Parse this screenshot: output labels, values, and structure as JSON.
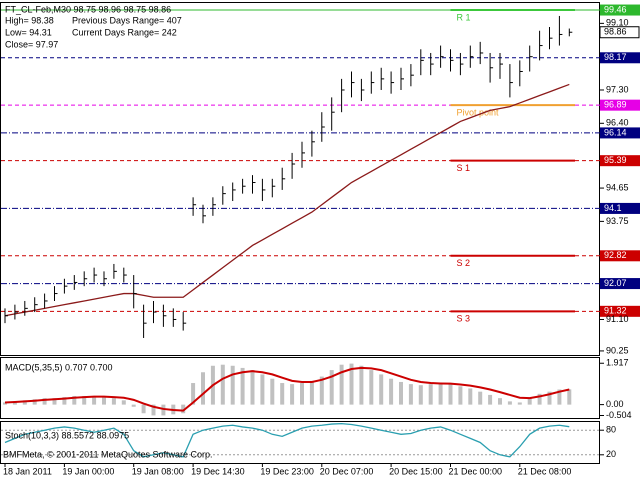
{
  "chart_data": [
    {
      "type": "candlestick",
      "title": "FT_CL-Feb,M30  98.75 98.96 98.75 98.86",
      "info": [
        "High= 98.38",
        "Previous Days Range= 407",
        "Low= 94.31",
        "Current Days Range= 242",
        "Close= 97.97"
      ],
      "categories": [
        "18 Jan 2011",
        null,
        null,
        null,
        null,
        null,
        "19 Jan 00:00",
        null,
        null,
        null,
        null,
        null,
        null,
        "19 Jan 08:00",
        null,
        null,
        null,
        null,
        null,
        "19 Dec 14:30",
        null,
        null,
        null,
        null,
        null,
        null,
        "19 Dec 23:00",
        null,
        null,
        null,
        null,
        null,
        "20 Dec 07:00",
        null,
        null,
        null,
        null,
        null,
        null,
        "20 Dec 15:00",
        null,
        null,
        null,
        null,
        null,
        "21 Dec 00:00",
        null,
        null,
        null,
        null,
        null,
        null,
        "21 Dec 08:00",
        null,
        null,
        null,
        null,
        null
      ],
      "high": [
        91.4,
        91.5,
        91.6,
        91.7,
        91.8,
        92.0,
        92.2,
        92.3,
        92.4,
        92.5,
        92.4,
        92.6,
        92.5,
        92.3,
        91.5,
        91.6,
        91.5,
        91.4,
        91.3,
        94.4,
        94.2,
        94.4,
        94.7,
        94.8,
        94.9,
        95.0,
        94.9,
        94.9,
        95.2,
        95.6,
        95.9,
        96.2,
        96.7,
        97.1,
        97.6,
        97.8,
        97.6,
        97.8,
        97.9,
        97.8,
        97.9,
        98.0,
        98.4,
        98.3,
        98.5,
        98.4,
        98.3,
        98.5,
        98.6,
        98.3,
        98.3,
        98.0,
        98.1,
        98.5,
        98.9,
        99.0,
        99.3,
        98.96
      ],
      "low": [
        91.0,
        91.1,
        91.2,
        91.3,
        91.4,
        91.6,
        91.8,
        91.9,
        92.0,
        92.1,
        92.0,
        92.2,
        92.1,
        91.4,
        90.6,
        91.0,
        90.9,
        90.9,
        90.8,
        93.9,
        93.7,
        93.9,
        94.2,
        94.3,
        94.5,
        94.5,
        94.3,
        94.4,
        94.6,
        94.9,
        95.2,
        95.5,
        95.9,
        96.2,
        96.7,
        97.1,
        97.0,
        97.2,
        97.3,
        97.2,
        97.3,
        97.4,
        97.7,
        97.7,
        97.9,
        97.8,
        97.7,
        97.9,
        98.0,
        97.5,
        97.6,
        97.1,
        97.4,
        97.8,
        98.1,
        98.4,
        98.5,
        98.75
      ],
      "close": [
        91.2,
        91.3,
        91.4,
        91.5,
        91.6,
        91.8,
        92.0,
        92.1,
        92.2,
        92.3,
        92.2,
        92.4,
        92.3,
        91.8,
        91.0,
        91.3,
        91.2,
        91.1,
        91.0,
        94.2,
        93.9,
        94.2,
        94.5,
        94.6,
        94.7,
        94.8,
        94.6,
        94.7,
        94.9,
        95.3,
        95.6,
        95.9,
        96.3,
        96.7,
        97.3,
        97.5,
        97.3,
        97.5,
        97.6,
        97.5,
        97.6,
        97.7,
        98.1,
        98.0,
        98.2,
        98.1,
        98.0,
        98.2,
        98.3,
        97.9,
        98.0,
        97.5,
        97.8,
        98.2,
        98.5,
        98.7,
        98.8,
        98.86
      ],
      "color": "#000000",
      "series": [
        {
          "color": "#8b1a1a",
          "values": [
            91.2,
            91.25,
            91.3,
            91.35,
            91.4,
            91.45,
            91.5,
            91.55,
            91.6,
            91.65,
            91.7,
            91.75,
            91.8,
            91.8,
            91.75,
            91.7,
            91.7,
            91.7,
            91.7,
            91.9,
            92.1,
            92.3,
            92.5,
            92.7,
            92.9,
            93.1,
            93.25,
            93.4,
            93.55,
            93.7,
            93.85,
            94.0,
            94.2,
            94.4,
            94.6,
            94.8,
            94.95,
            95.1,
            95.25,
            95.4,
            95.55,
            95.7,
            95.85,
            96.0,
            96.15,
            96.3,
            96.45,
            96.55,
            96.65,
            96.75,
            96.8,
            96.85,
            96.95,
            97.05,
            97.15,
            97.25,
            97.35,
            97.45
          ]
        }
      ],
      "ylim": [
        90.14,
        99.65
      ],
      "yticks": [
        {
          "value": 99.1,
          "label": "99.10"
        },
        {
          "value": 97.3,
          "label": "97.30"
        },
        {
          "value": 96.4,
          "label": "96.40"
        },
        94.65,
        93.75,
        {
          "value": 91.1,
          "label": "91.10"
        },
        90.25
      ],
      "levels": [
        {
          "value": 99.46,
          "color": "#2db82d",
          "dash": "solid"
        },
        {
          "value": 98.17,
          "color": "#000080",
          "dash": "dash"
        },
        {
          "value": 96.89,
          "color": "#e600e6",
          "dash": "dash"
        },
        {
          "value": 96.14,
          "color": "#000080",
          "dash": "dashdot"
        },
        {
          "value": 95.39,
          "color": "#cc0000",
          "dash": "dash"
        },
        {
          "value": 94.1,
          "color": "#000080",
          "dash": "dashdot"
        },
        {
          "value": 92.82,
          "color": "#cc0000",
          "dash": "dash"
        },
        {
          "value": 92.07,
          "color": "#000080",
          "dash": "dashdot"
        },
        {
          "value": 91.32,
          "color": "#cc0000",
          "dash": "dash"
        }
      ],
      "pivots": [
        {
          "label": "R 1",
          "value": 99.46,
          "color": "#3cc83c"
        },
        {
          "label": "Pivot point",
          "value": 96.89,
          "color": "#f0a030"
        },
        {
          "label": "S 1",
          "value": 95.39,
          "color": "#cc0000"
        },
        {
          "label": "S 2",
          "value": 92.82,
          "color": "#cc0000"
        },
        {
          "label": "S 3",
          "value": 91.32,
          "color": "#cc0000"
        }
      ]
    },
    {
      "type": "histogram-line",
      "title": "MACD(5,35,5) 0.707 0.700",
      "series": [
        {
          "color": "#c0c0c0",
          "values": [
            0.1,
            0.15,
            0.2,
            0.25,
            0.3,
            0.3,
            0.35,
            0.4,
            0.4,
            0.4,
            0.35,
            0.3,
            0.2,
            -0.1,
            -0.4,
            -0.5,
            -0.5,
            -0.45,
            -0.4,
            1.0,
            1.5,
            1.8,
            1.85,
            1.8,
            1.7,
            1.6,
            1.4,
            1.2,
            1.0,
            0.95,
            1.0,
            1.1,
            1.3,
            1.6,
            1.85,
            1.9,
            1.8,
            1.6,
            1.4,
            1.2,
            1.05,
            0.95,
            0.9,
            0.95,
            1.0,
            0.95,
            0.85,
            0.75,
            0.6,
            0.45,
            0.3,
            0.15,
            0.1,
            0.3,
            0.5,
            0.6,
            0.7,
            0.707
          ]
        },
        {
          "color": "#cc0000",
          "values": [
            0.1,
            0.12,
            0.15,
            0.18,
            0.22,
            0.25,
            0.28,
            0.32,
            0.35,
            0.37,
            0.37,
            0.35,
            0.32,
            0.22,
            0.05,
            -0.1,
            -0.2,
            -0.25,
            -0.28,
            0.1,
            0.5,
            0.9,
            1.2,
            1.4,
            1.5,
            1.55,
            1.5,
            1.4,
            1.25,
            1.1,
            1.05,
            1.05,
            1.15,
            1.3,
            1.5,
            1.65,
            1.7,
            1.68,
            1.6,
            1.45,
            1.3,
            1.15,
            1.05,
            1.0,
            0.98,
            0.97,
            0.93,
            0.88,
            0.8,
            0.7,
            0.58,
            0.45,
            0.32,
            0.3,
            0.38,
            0.48,
            0.6,
            0.7
          ]
        }
      ],
      "ylim": [
        -0.62,
        2.16
      ],
      "yticks": [
        1.917,
        {
          "value": 0,
          "label": "0.00"
        },
        -0.504
      ]
    },
    {
      "type": "line",
      "title": "Stoch(10,3,3) 88.5572 88.0975",
      "footer": "BMFMeta, © 2001-2011 MetaQuotes Software Corp.",
      "series": [
        {
          "color": "#2a9fb0",
          "values": [
            50,
            60,
            70,
            75,
            80,
            85,
            88,
            85,
            80,
            75,
            80,
            85,
            70,
            30,
            15,
            20,
            25,
            20,
            15,
            70,
            80,
            85,
            90,
            92,
            88,
            85,
            80,
            70,
            65,
            75,
            85,
            90,
            92,
            95,
            96,
            94,
            90,
            85,
            80,
            75,
            70,
            72,
            80,
            85,
            88,
            80,
            70,
            60,
            50,
            30,
            20,
            15,
            40,
            70,
            85,
            90,
            92,
            88.56
          ]
        }
      ],
      "ylim": [
        0,
        100
      ],
      "yticks": [
        80,
        20
      ]
    }
  ]
}
